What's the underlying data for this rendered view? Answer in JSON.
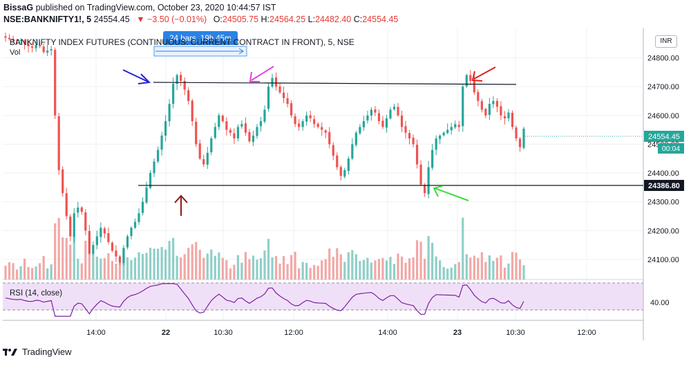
{
  "header": {
    "line1_user": "BissaG",
    "line1_rest": " published on TradingView.com, October 23, 2020 10:44:57 IST",
    "symbol": "NSE:BANKNIFTY1!, 5",
    "last": "24554.45",
    "change": "▼ −3.50 (−0.01%)",
    "open_label": "O:",
    "open": "24505.75",
    "high_label": "H:",
    "high": "24564.25",
    "low_label": "L:",
    "low": "24482.40",
    "close_label": "C:",
    "close": "24554.45"
  },
  "chart_title": "BANKNIFTY INDEX FUTURES (CONTINUOUS: CURRENT CONTRACT IN FRONT), 5, NSE",
  "vol_label": "Vol",
  "range_badge": "24 bars, 19h 45m",
  "currency_button": "INR",
  "rsi_label": "RSI (14, close)",
  "footer_brand": "TradingView",
  "colors": {
    "up": "#26a69a",
    "down": "#ef5350",
    "vol_up": "#8fcfc8",
    "vol_down": "#f2a8a6",
    "rsi": "#7b1fa2",
    "rsi_band": "#f0e0f7"
  },
  "chart_data": {
    "type": "candlestick",
    "price_axis": {
      "ticks": [
        "24100.00",
        "24200.00",
        "24300.00",
        "24400.00",
        "24500.00",
        "24600.00",
        "24700.00",
        "24800.00"
      ],
      "range": [
        24030,
        24900
      ]
    },
    "price_labels": {
      "last": "24554.45",
      "countdown": "00:04",
      "support": "24386.80"
    },
    "time_axis": [
      "14:00",
      "22",
      "10:30",
      "12:00",
      "14:00",
      "23",
      "10:30",
      "12:00"
    ],
    "rsi_axis": {
      "ticks": [
        "40.00"
      ],
      "band": [
        30,
        70
      ]
    },
    "lines": [
      {
        "name": "resistance",
        "from": 24745,
        "to": 24738
      },
      {
        "name": "support",
        "level": 24386.8
      }
    ],
    "closes": [
      24870,
      24865,
      24860,
      24858,
      24862,
      24850,
      24840,
      24835,
      24845,
      24840,
      24820,
      24825,
      24830,
      24600,
      24410,
      24330,
      24250,
      24180,
      24260,
      24280,
      24265,
      24200,
      24120,
      24150,
      24180,
      24210,
      24190,
      24160,
      24130,
      24110,
      24090,
      24140,
      24180,
      24210,
      24230,
      24260,
      24300,
      24350,
      24400,
      24440,
      24480,
      24530,
      24580,
      24640,
      24710,
      24740,
      24720,
      24690,
      24650,
      24580,
      24500,
      24450,
      24430,
      24470,
      24520,
      24560,
      24600,
      24580,
      24550,
      24540,
      24520,
      24560,
      24570,
      24540,
      24510,
      24530,
      24560,
      24580,
      24620,
      24700,
      24730,
      24700,
      24680,
      24660,
      24640,
      24600,
      24570,
      24560,
      24580,
      24600,
      24590,
      24570,
      24560,
      24550,
      24540,
      24500,
      24460,
      24420,
      24390,
      24410,
      24450,
      24500,
      24540,
      24560,
      24580,
      24600,
      24620,
      24610,
      24580,
      24560,
      24590,
      24620,
      24630,
      24600,
      24560,
      24540,
      24520,
      24500,
      24430,
      24360,
      24330,
      24420,
      24480,
      24520,
      24530,
      24540,
      24550,
      24560,
      24570,
      24560,
      24700,
      24740,
      24720,
      24680,
      24650,
      24620,
      24600,
      24640,
      24650,
      24630,
      24600,
      24590,
      24610,
      24560,
      24520,
      24490,
      24554
    ]
  }
}
